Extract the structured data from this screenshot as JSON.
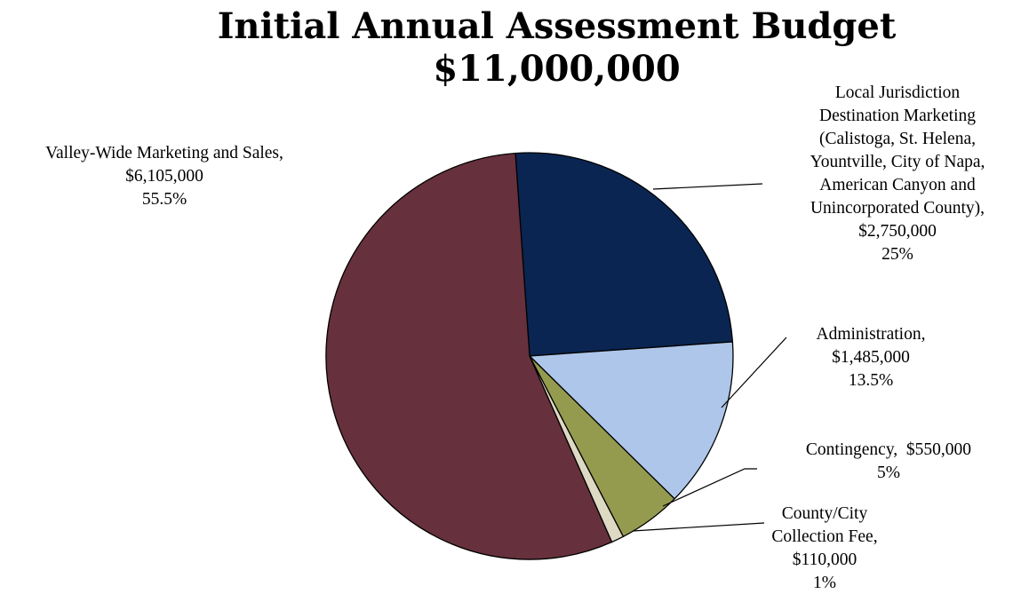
{
  "chart_data": {
    "type": "pie",
    "title": "Initial Annual Assessment Budget",
    "subtitle": "$11,000,000",
    "slices": [
      {
        "label": "Local Jurisdiction\nDestination Marketing\n(Calistoga, St. Helena,\nYountville, City of Napa,\nAmerican Canyon and\nUnincorporated County),",
        "amount": "$2,750,000",
        "percent_label": "25%",
        "value": 25,
        "color": "#0a2551"
      },
      {
        "label": "Administration,",
        "amount": "$1,485,000",
        "percent_label": "13.5%",
        "value": 13.5,
        "color": "#aec6ea"
      },
      {
        "label": "Contingency,  $550,000",
        "amount": "",
        "percent_label": "5%",
        "value": 5,
        "color": "#949b4f"
      },
      {
        "label": "County/City\nCollection Fee,",
        "amount": "$110,000",
        "percent_label": "1%",
        "value": 1,
        "color": "#ddd9c3"
      },
      {
        "label": "Valley-Wide Marketing and Sales,",
        "amount": "$6,105,000",
        "percent_label": "55.5%",
        "value": 55.5,
        "color": "#66313c"
      }
    ]
  }
}
